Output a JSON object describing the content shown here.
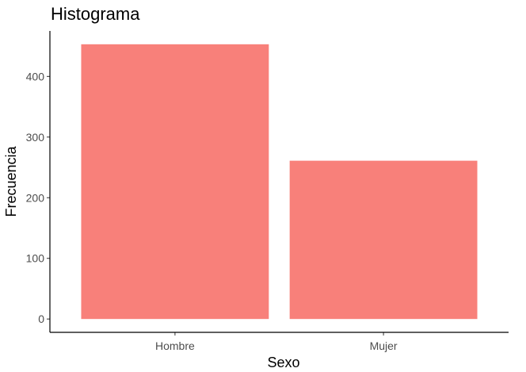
{
  "chart_data": {
    "type": "bar",
    "title": "Histograma",
    "xlabel": "Sexo",
    "ylabel": "Frecuencia",
    "categories": [
      "Hombre",
      "Mujer"
    ],
    "values": [
      453,
      261
    ],
    "ylim": [
      -22,
      475
    ],
    "yticks": [
      0,
      100,
      200,
      300,
      400
    ],
    "bar_color": "#F8807A",
    "grid": false,
    "legend": "none"
  }
}
